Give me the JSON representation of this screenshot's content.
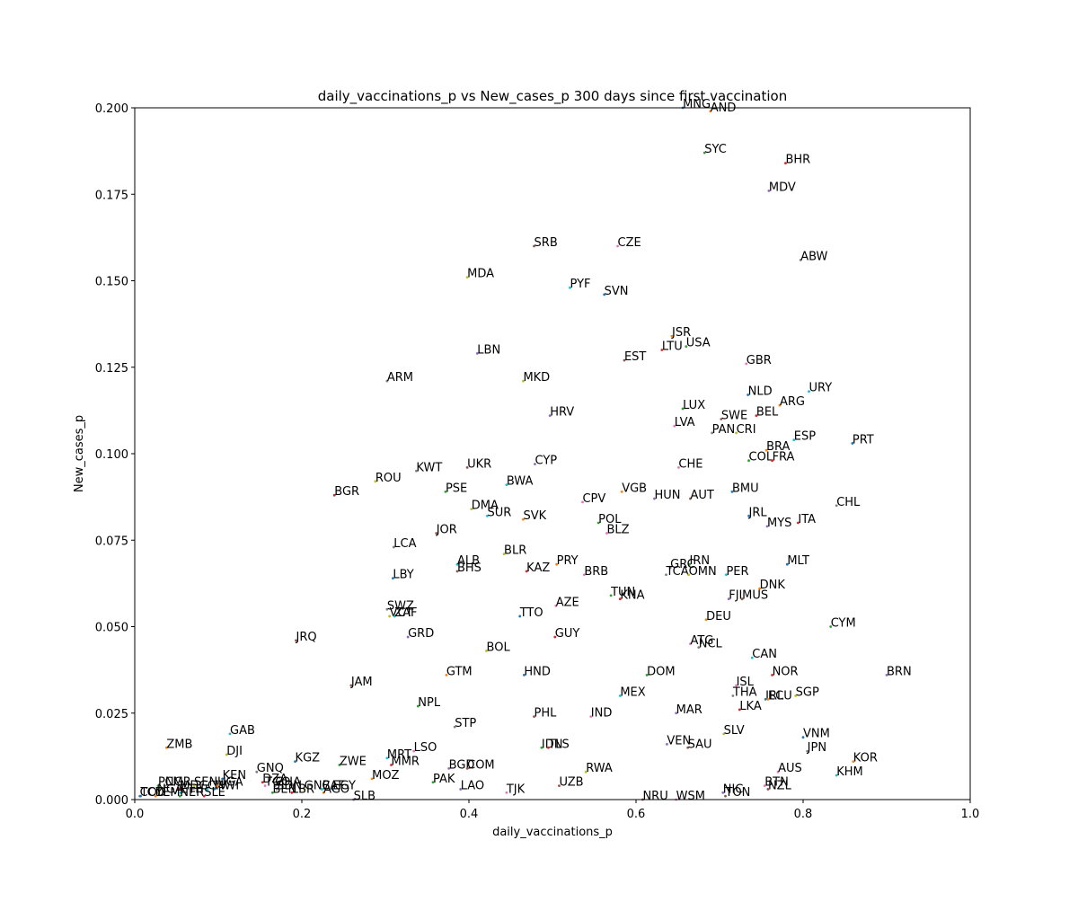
{
  "chart_data": {
    "type": "scatter",
    "title": "daily_vaccinations_p vs New_cases_p 300 days since first vaccination",
    "xlabel": "daily_vaccinations_p",
    "ylabel": "New_cases_p",
    "xlim": [
      0.0,
      1.0
    ],
    "ylim": [
      0.0,
      0.2
    ],
    "xticks": [
      "0.0",
      "0.2",
      "0.4",
      "0.6",
      "0.8",
      "1.0"
    ],
    "yticks": [
      "0.000",
      "0.025",
      "0.050",
      "0.075",
      "0.100",
      "0.125",
      "0.150",
      "0.175",
      "0.200"
    ],
    "grid": false,
    "legend": "none",
    "palette": [
      "#1f77b4",
      "#ff7f0e",
      "#2ca02c",
      "#d62728",
      "#9467bd",
      "#8c564b",
      "#e377c2",
      "#7f7f7f",
      "#bcbd22",
      "#17becf"
    ],
    "points": [
      {
        "label": "MNG",
        "x": 0.656,
        "y": 0.2
      },
      {
        "label": "AND",
        "x": 0.689,
        "y": 0.199
      },
      {
        "label": "SYC",
        "x": 0.682,
        "y": 0.187
      },
      {
        "label": "BHR",
        "x": 0.779,
        "y": 0.184
      },
      {
        "label": "MDV",
        "x": 0.759,
        "y": 0.176
      },
      {
        "label": "SRB",
        "x": 0.478,
        "y": 0.16
      },
      {
        "label": "CZE",
        "x": 0.578,
        "y": 0.16
      },
      {
        "label": "ABW",
        "x": 0.797,
        "y": 0.156
      },
      {
        "label": "MDA",
        "x": 0.398,
        "y": 0.151
      },
      {
        "label": "PYF",
        "x": 0.521,
        "y": 0.148
      },
      {
        "label": "SVN",
        "x": 0.562,
        "y": 0.146
      },
      {
        "label": "JSR",
        "x": 0.643,
        "y": 0.134
      },
      {
        "label": "USA",
        "x": 0.66,
        "y": 0.131
      },
      {
        "label": "LTU",
        "x": 0.631,
        "y": 0.13
      },
      {
        "label": "LBN",
        "x": 0.41,
        "y": 0.129
      },
      {
        "label": "EST",
        "x": 0.586,
        "y": 0.127
      },
      {
        "label": "GBR",
        "x": 0.732,
        "y": 0.126
      },
      {
        "label": "ARM",
        "x": 0.302,
        "y": 0.121
      },
      {
        "label": "MKD",
        "x": 0.465,
        "y": 0.121
      },
      {
        "label": "URY",
        "x": 0.807,
        "y": 0.118
      },
      {
        "label": "NLD",
        "x": 0.734,
        "y": 0.117
      },
      {
        "label": "ARG",
        "x": 0.772,
        "y": 0.114
      },
      {
        "label": "LUX",
        "x": 0.656,
        "y": 0.113
      },
      {
        "label": "BEL",
        "x": 0.744,
        "y": 0.111
      },
      {
        "label": "HRV",
        "x": 0.497,
        "y": 0.111
      },
      {
        "label": "SWE",
        "x": 0.702,
        "y": 0.11
      },
      {
        "label": "LVA",
        "x": 0.646,
        "y": 0.108
      },
      {
        "label": "PAN",
        "x": 0.691,
        "y": 0.106
      },
      {
        "label": "CRI",
        "x": 0.72,
        "y": 0.106
      },
      {
        "label": "ESP",
        "x": 0.789,
        "y": 0.104
      },
      {
        "label": "PRT",
        "x": 0.859,
        "y": 0.103
      },
      {
        "label": "BRA",
        "x": 0.756,
        "y": 0.101
      },
      {
        "label": "COL",
        "x": 0.735,
        "y": 0.098
      },
      {
        "label": "FRA",
        "x": 0.763,
        "y": 0.098
      },
      {
        "label": "CYP",
        "x": 0.479,
        "y": 0.097
      },
      {
        "label": "UKR",
        "x": 0.398,
        "y": 0.096
      },
      {
        "label": "CHE",
        "x": 0.651,
        "y": 0.096
      },
      {
        "label": "KWT",
        "x": 0.337,
        "y": 0.095
      },
      {
        "label": "ROU",
        "x": 0.288,
        "y": 0.092
      },
      {
        "label": "BWA",
        "x": 0.445,
        "y": 0.091
      },
      {
        "label": "BMU",
        "x": 0.715,
        "y": 0.089
      },
      {
        "label": "VGB",
        "x": 0.583,
        "y": 0.089
      },
      {
        "label": "PSE",
        "x": 0.372,
        "y": 0.089
      },
      {
        "label": "BGR",
        "x": 0.239,
        "y": 0.088
      },
      {
        "label": "HUN",
        "x": 0.622,
        "y": 0.087
      },
      {
        "label": "AUT",
        "x": 0.665,
        "y": 0.087
      },
      {
        "label": "CPV",
        "x": 0.536,
        "y": 0.086
      },
      {
        "label": "CHL",
        "x": 0.84,
        "y": 0.085
      },
      {
        "label": "DMA",
        "x": 0.403,
        "y": 0.084
      },
      {
        "label": "SUR",
        "x": 0.422,
        "y": 0.082
      },
      {
        "label": "JRL",
        "x": 0.735,
        "y": 0.082
      },
      {
        "label": "SVK",
        "x": 0.465,
        "y": 0.081
      },
      {
        "label": "POL",
        "x": 0.555,
        "y": 0.08
      },
      {
        "label": "ITA",
        "x": 0.794,
        "y": 0.08
      },
      {
        "label": "MYS",
        "x": 0.757,
        "y": 0.079
      },
      {
        "label": "JOR",
        "x": 0.361,
        "y": 0.077
      },
      {
        "label": "BLZ",
        "x": 0.565,
        "y": 0.077
      },
      {
        "label": "LCA",
        "x": 0.31,
        "y": 0.073
      },
      {
        "label": "BLR",
        "x": 0.442,
        "y": 0.071
      },
      {
        "label": "ALB",
        "x": 0.386,
        "y": 0.068
      },
      {
        "label": "MLT",
        "x": 0.781,
        "y": 0.068
      },
      {
        "label": "PRY",
        "x": 0.505,
        "y": 0.068
      },
      {
        "label": "IRN",
        "x": 0.664,
        "y": 0.068
      },
      {
        "label": "KAZ",
        "x": 0.469,
        "y": 0.066
      },
      {
        "label": "GRC",
        "x": 0.641,
        "y": 0.067
      },
      {
        "label": "BHS",
        "x": 0.386,
        "y": 0.066
      },
      {
        "label": "BRB",
        "x": 0.538,
        "y": 0.065
      },
      {
        "label": "TCA",
        "x": 0.636,
        "y": 0.065
      },
      {
        "label": "OMN",
        "x": 0.663,
        "y": 0.065
      },
      {
        "label": "PER",
        "x": 0.708,
        "y": 0.065
      },
      {
        "label": "LBY",
        "x": 0.309,
        "y": 0.064
      },
      {
        "label": "DNK",
        "x": 0.748,
        "y": 0.061
      },
      {
        "label": "TUN",
        "x": 0.57,
        "y": 0.059
      },
      {
        "label": "KNA",
        "x": 0.581,
        "y": 0.058
      },
      {
        "label": "FJI",
        "x": 0.711,
        "y": 0.058
      },
      {
        "label": "MUS",
        "x": 0.727,
        "y": 0.058
      },
      {
        "label": "AZE",
        "x": 0.504,
        "y": 0.056
      },
      {
        "label": "SWZ",
        "x": 0.302,
        "y": 0.055
      },
      {
        "label": "VCT",
        "x": 0.305,
        "y": 0.053
      },
      {
        "label": "ZAF",
        "x": 0.311,
        "y": 0.053
      },
      {
        "label": "TTO",
        "x": 0.461,
        "y": 0.053
      },
      {
        "label": "DEU",
        "x": 0.684,
        "y": 0.052
      },
      {
        "label": "CYM",
        "x": 0.833,
        "y": 0.05
      },
      {
        "label": "GUY",
        "x": 0.503,
        "y": 0.047
      },
      {
        "label": "GRD",
        "x": 0.327,
        "y": 0.047
      },
      {
        "label": "JRQ",
        "x": 0.193,
        "y": 0.046
      },
      {
        "label": "ATG",
        "x": 0.665,
        "y": 0.045
      },
      {
        "label": "NCL",
        "x": 0.675,
        "y": 0.044
      },
      {
        "label": "BOL",
        "x": 0.421,
        "y": 0.043
      },
      {
        "label": "CAN",
        "x": 0.739,
        "y": 0.041
      },
      {
        "label": "HND",
        "x": 0.466,
        "y": 0.036
      },
      {
        "label": "GTM",
        "x": 0.373,
        "y": 0.036
      },
      {
        "label": "DOM",
        "x": 0.613,
        "y": 0.036
      },
      {
        "label": "NOR",
        "x": 0.763,
        "y": 0.036
      },
      {
        "label": "BRN",
        "x": 0.9,
        "y": 0.036
      },
      {
        "label": "JAM",
        "x": 0.259,
        "y": 0.033
      },
      {
        "label": "ISL",
        "x": 0.72,
        "y": 0.033
      },
      {
        "label": "THA",
        "x": 0.716,
        "y": 0.03
      },
      {
        "label": "SGP",
        "x": 0.791,
        "y": 0.03
      },
      {
        "label": "MEX",
        "x": 0.581,
        "y": 0.03
      },
      {
        "label": "IRL",
        "x": 0.755,
        "y": 0.029
      },
      {
        "label": "ECU",
        "x": 0.758,
        "y": 0.029
      },
      {
        "label": "NPL",
        "x": 0.339,
        "y": 0.027
      },
      {
        "label": "LKA",
        "x": 0.724,
        "y": 0.026
      },
      {
        "label": "MAR",
        "x": 0.648,
        "y": 0.025
      },
      {
        "label": "PHL",
        "x": 0.478,
        "y": 0.024
      },
      {
        "label": "IND",
        "x": 0.546,
        "y": 0.024
      },
      {
        "label": "STP",
        "x": 0.383,
        "y": 0.021
      },
      {
        "label": "SLV",
        "x": 0.705,
        "y": 0.019
      },
      {
        "label": "GAB",
        "x": 0.114,
        "y": 0.019
      },
      {
        "label": "VNM",
        "x": 0.8,
        "y": 0.018
      },
      {
        "label": "ZMB",
        "x": 0.038,
        "y": 0.015
      },
      {
        "label": "IDN",
        "x": 0.487,
        "y": 0.015
      },
      {
        "label": "TLS",
        "x": 0.495,
        "y": 0.015
      },
      {
        "label": "VEN",
        "x": 0.637,
        "y": 0.016
      },
      {
        "label": "SAU",
        "x": 0.662,
        "y": 0.015
      },
      {
        "label": "LSO",
        "x": 0.334,
        "y": 0.014
      },
      {
        "label": "JPN",
        "x": 0.805,
        "y": 0.014
      },
      {
        "label": "DJI",
        "x": 0.11,
        "y": 0.013
      },
      {
        "label": "MRT",
        "x": 0.302,
        "y": 0.012
      },
      {
        "label": "KGZ",
        "x": 0.192,
        "y": 0.011
      },
      {
        "label": "KOR",
        "x": 0.86,
        "y": 0.011
      },
      {
        "label": "ZWE",
        "x": 0.245,
        "y": 0.01
      },
      {
        "label": "MMR",
        "x": 0.307,
        "y": 0.01
      },
      {
        "label": "BGD",
        "x": 0.376,
        "y": 0.009
      },
      {
        "label": "COM",
        "x": 0.398,
        "y": 0.009
      },
      {
        "label": "AUS",
        "x": 0.77,
        "y": 0.008
      },
      {
        "label": "GNQ",
        "x": 0.146,
        "y": 0.008
      },
      {
        "label": "RWA",
        "x": 0.54,
        "y": 0.008
      },
      {
        "label": "KHM",
        "x": 0.84,
        "y": 0.007
      },
      {
        "label": "KEN",
        "x": 0.105,
        "y": 0.006
      },
      {
        "label": "MOZ",
        "x": 0.284,
        "y": 0.006
      },
      {
        "label": "PAK",
        "x": 0.357,
        "y": 0.005
      },
      {
        "label": "DZA",
        "x": 0.153,
        "y": 0.005
      },
      {
        "label": "GHA",
        "x": 0.168,
        "y": 0.004
      },
      {
        "label": "UZB",
        "x": 0.508,
        "y": 0.004
      },
      {
        "label": "BTN",
        "x": 0.754,
        "y": 0.004
      },
      {
        "label": "CMR",
        "x": 0.036,
        "y": 0.004
      },
      {
        "label": "SEN",
        "x": 0.071,
        "y": 0.004
      },
      {
        "label": "CIV",
        "x": 0.087,
        "y": 0.003
      },
      {
        "label": "MWI",
        "x": 0.095,
        "y": 0.003
      },
      {
        "label": "UGA",
        "x": 0.099,
        "y": 0.004
      },
      {
        "label": "PNG",
        "x": 0.028,
        "y": 0.004
      },
      {
        "label": "MDG",
        "x": 0.054,
        "y": 0.003
      },
      {
        "label": "LAO",
        "x": 0.39,
        "y": 0.003
      },
      {
        "label": "NZL",
        "x": 0.758,
        "y": 0.003
      },
      {
        "label": "TGO",
        "x": 0.156,
        "y": 0.004
      },
      {
        "label": "SDN",
        "x": 0.17,
        "y": 0.003
      },
      {
        "label": "GNB",
        "x": 0.203,
        "y": 0.003
      },
      {
        "label": "CAF",
        "x": 0.224,
        "y": 0.003
      },
      {
        "label": "EGY",
        "x": 0.237,
        "y": 0.003
      },
      {
        "label": "AGO",
        "x": 0.226,
        "y": 0.002
      },
      {
        "label": "BEN",
        "x": 0.165,
        "y": 0.002
      },
      {
        "label": "LBR",
        "x": 0.188,
        "y": 0.002
      },
      {
        "label": "NIC",
        "x": 0.704,
        "y": 0.002
      },
      {
        "label": "TON",
        "x": 0.707,
        "y": 0.001
      },
      {
        "label": "TJK",
        "x": 0.445,
        "y": 0.002
      },
      {
        "label": "COD",
        "x": 0.006,
        "y": 0.001
      },
      {
        "label": "NGA",
        "x": 0.027,
        "y": 0.002
      },
      {
        "label": "ETH",
        "x": 0.055,
        "y": 0.002
      },
      {
        "label": "TCD",
        "x": 0.007,
        "y": 0.001
      },
      {
        "label": "YEM",
        "x": 0.025,
        "y": 0.001
      },
      {
        "label": "NER",
        "x": 0.054,
        "y": 0.001
      },
      {
        "label": "SLE",
        "x": 0.083,
        "y": 0.001
      },
      {
        "label": "SLB",
        "x": 0.262,
        "y": 0.0
      },
      {
        "label": "NRU",
        "x": 0.608,
        "y": 0.0
      },
      {
        "label": "WSM",
        "x": 0.648,
        "y": 0.0
      }
    ]
  }
}
